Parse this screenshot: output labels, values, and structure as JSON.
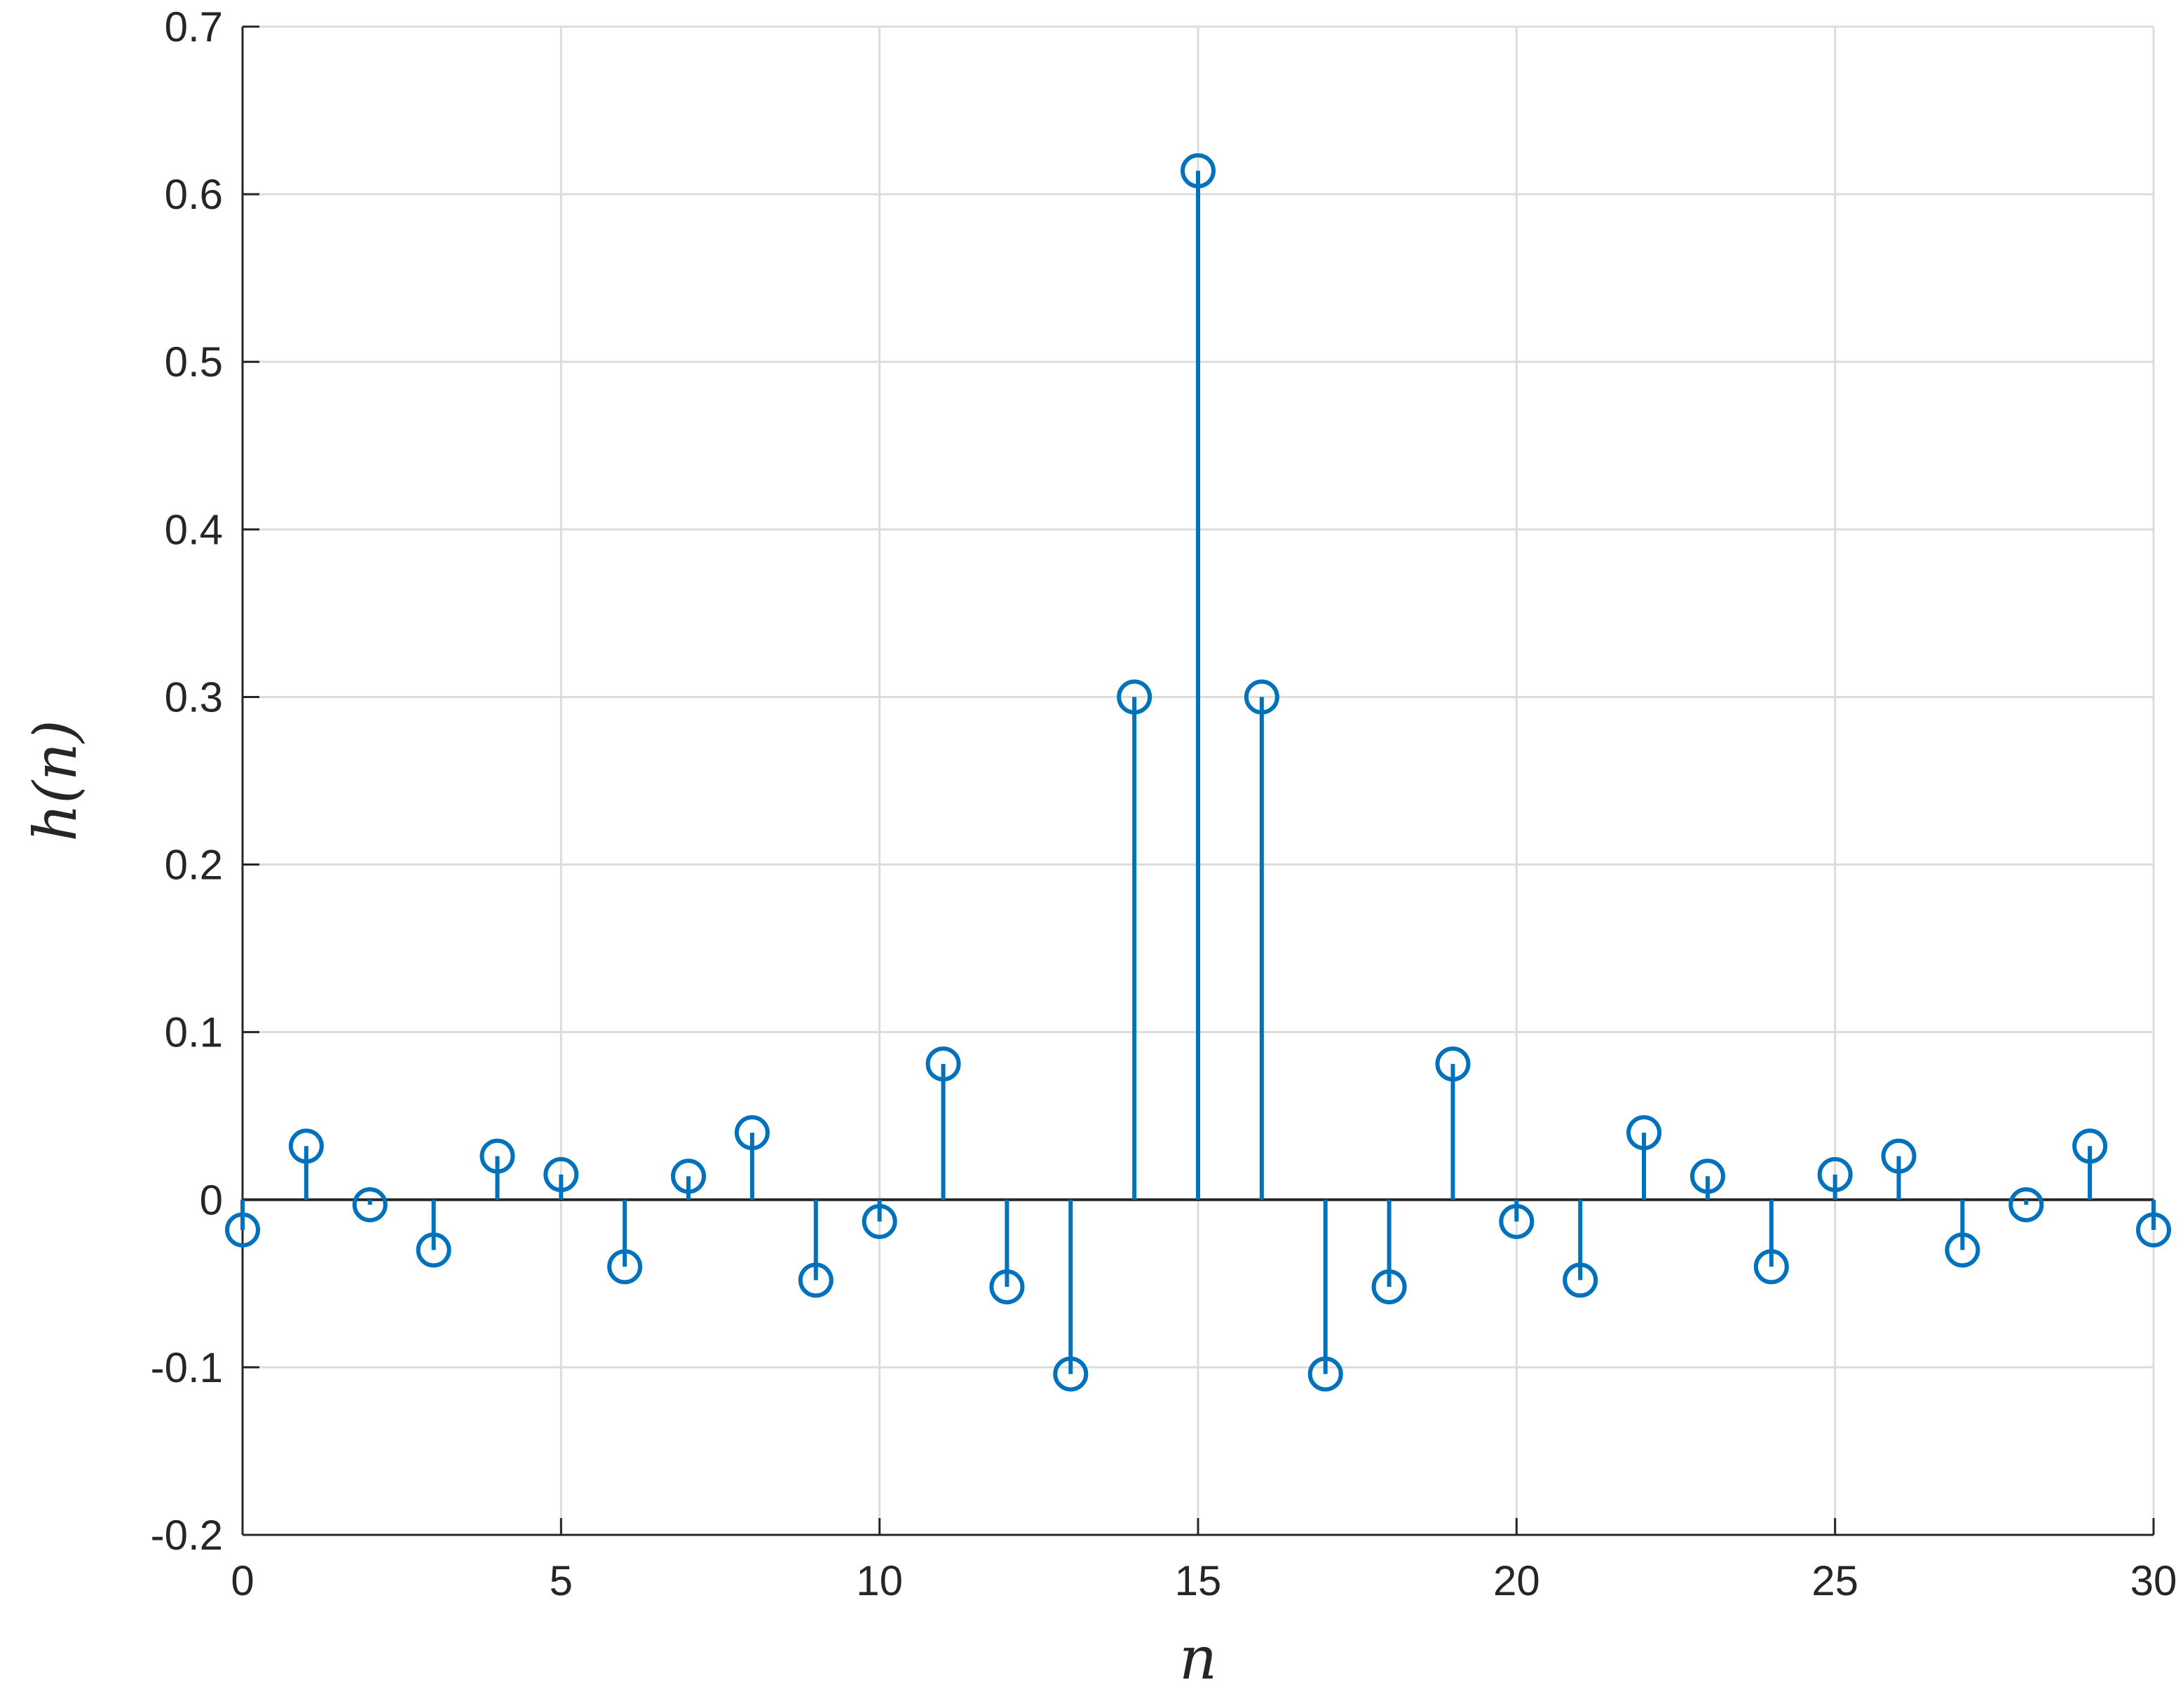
{
  "chart_data": {
    "type": "stem",
    "xlabel": "n",
    "ylabel": "h(n)",
    "xlim": [
      0,
      30
    ],
    "ylim": [
      -0.2,
      0.7
    ],
    "xticks": [
      0,
      5,
      10,
      15,
      20,
      25,
      30
    ],
    "xtick_labels": [
      "0",
      "5",
      "10",
      "15",
      "20",
      "25",
      "30"
    ],
    "yticks": [
      -0.2,
      -0.1,
      0,
      0.1,
      0.2,
      0.3,
      0.4,
      0.5,
      0.6,
      0.7
    ],
    "ytick_labels": [
      "-0.2",
      "-0.1",
      "0",
      "0.1",
      "0.2",
      "0.3",
      "0.4",
      "0.5",
      "0.6",
      "0.7"
    ],
    "grid": true,
    "series": [
      {
        "color": "#0072BD",
        "marker": "circle-open",
        "x": [
          0,
          1,
          2,
          3,
          4,
          5,
          6,
          7,
          8,
          9,
          10,
          11,
          12,
          13,
          14,
          15,
          16,
          17,
          18,
          19,
          20,
          21,
          22,
          23,
          24,
          25,
          26,
          27,
          28,
          29,
          30
        ],
        "values": [
          -0.018,
          0.032,
          -0.003,
          -0.03,
          0.026,
          0.015,
          -0.04,
          0.014,
          0.04,
          -0.048,
          -0.013,
          0.081,
          -0.052,
          -0.104,
          0.3,
          0.614,
          0.3,
          -0.104,
          -0.052,
          0.081,
          -0.013,
          -0.048,
          0.04,
          0.014,
          -0.04,
          0.015,
          0.026,
          -0.03,
          -0.003,
          0.032,
          -0.018
        ]
      }
    ]
  }
}
